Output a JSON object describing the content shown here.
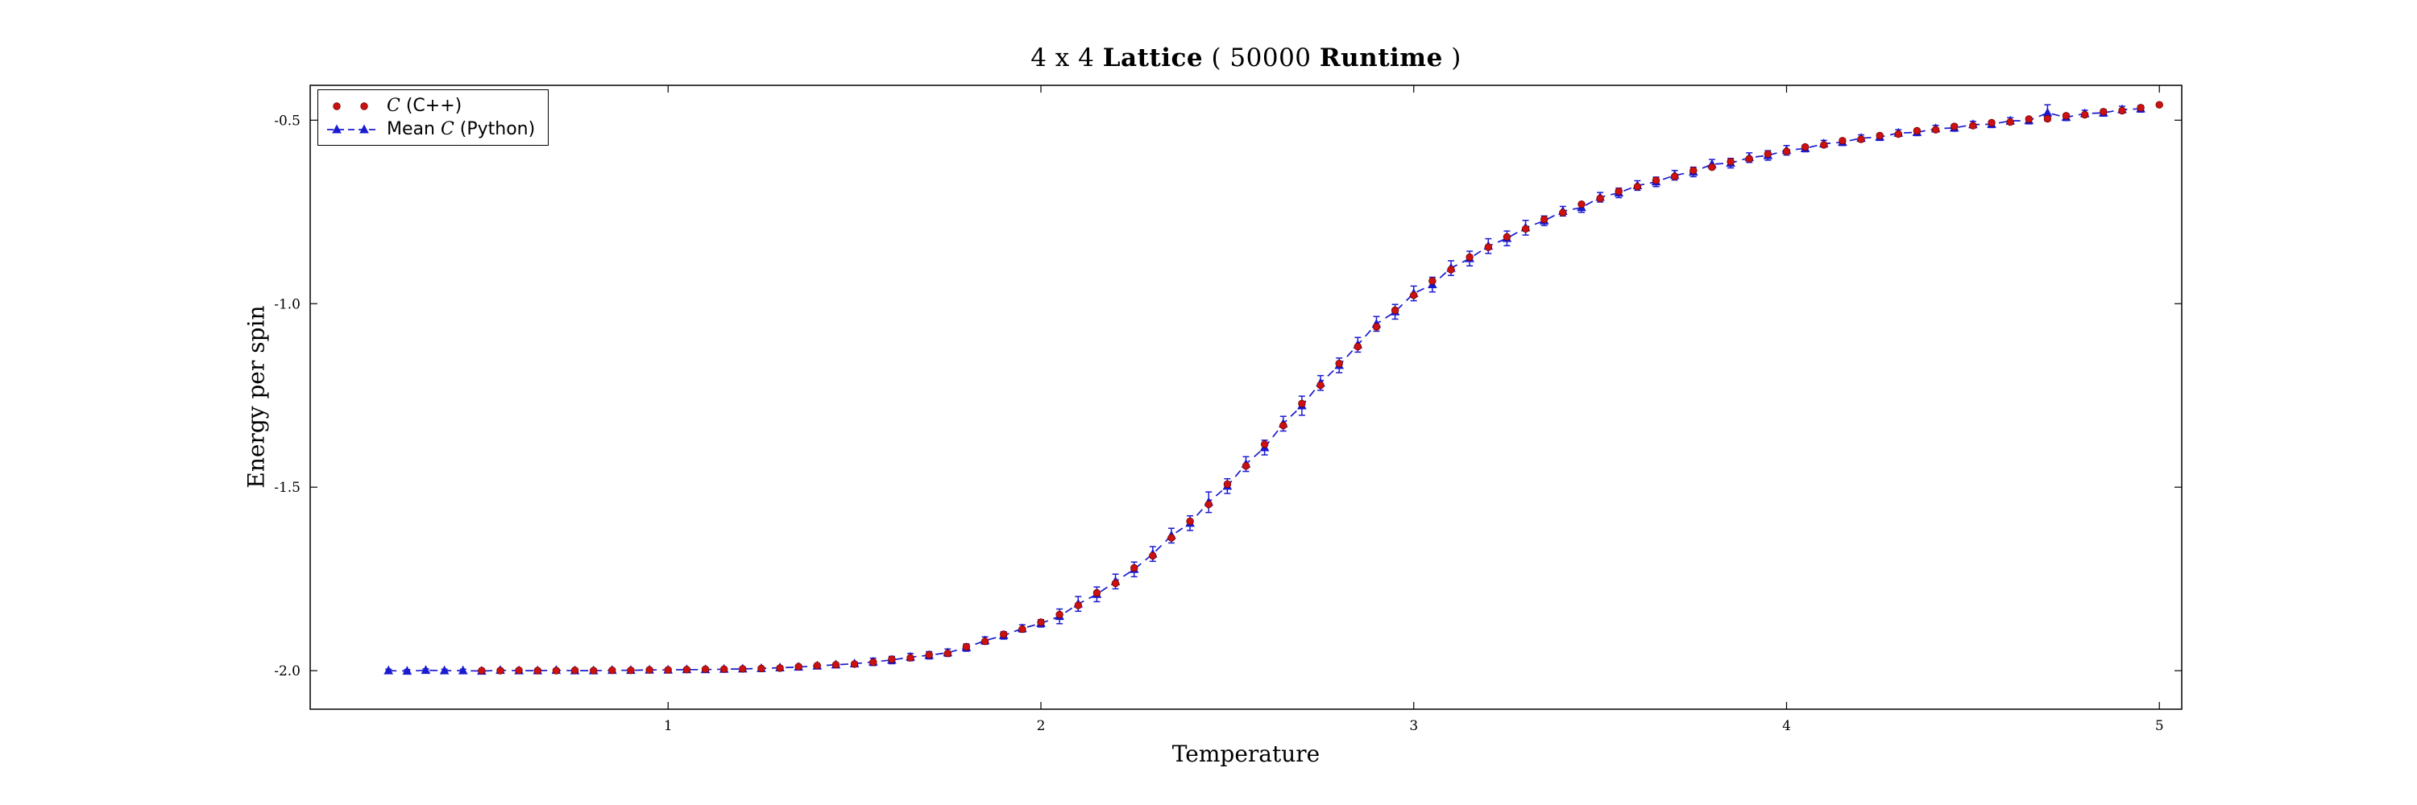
{
  "title_parts": {
    "p1": "4 x 4 ",
    "p2": "Lattice",
    "p3": " ( 50000 ",
    "p4": "Runtime",
    "p5": " )"
  },
  "xlabel": "Temperature",
  "ylabel": "Energy per spin",
  "legend": [
    {
      "prefix": "",
      "math": "C",
      "rest": " (C++)"
    },
    {
      "prefix": "Mean ",
      "math": "C",
      "rest": " (Python)"
    }
  ],
  "chart_data": {
    "type": "scatter",
    "title": "4 x 4 Lattice ( 50000 Runtime )",
    "xlabel": "Temperature",
    "ylabel": "Energy per spin",
    "grid": false,
    "legend_position": "upper left",
    "axis_color": "#000000",
    "xlim": [
      0.04,
      5.06
    ],
    "ylim": [
      -2.105,
      -0.405
    ],
    "xticks": [
      1,
      2,
      3,
      4,
      5
    ],
    "xtick_labels": [
      "1",
      "2",
      "3",
      "4",
      "5"
    ],
    "yticks": [
      -0.5,
      -1.0,
      -1.5,
      -2.0
    ],
    "ytick_labels": [
      "-0.5",
      "-1.0",
      "-1.5",
      "-2.0"
    ],
    "series": [
      {
        "name": "C (C++)",
        "type": "scatter",
        "marker": "circle",
        "color": "#cc1111",
        "x": [
          0.5,
          0.55,
          0.6,
          0.65,
          0.7,
          0.75,
          0.8,
          0.85,
          0.9,
          0.95,
          1.0,
          1.05,
          1.1,
          1.15,
          1.2,
          1.25,
          1.3,
          1.35,
          1.4,
          1.45,
          1.5,
          1.55,
          1.6,
          1.65,
          1.7,
          1.75,
          1.8,
          1.85,
          1.9,
          1.95,
          2.0,
          2.05,
          2.1,
          2.15,
          2.2,
          2.25,
          2.3,
          2.35,
          2.4,
          2.45,
          2.5,
          2.55,
          2.6,
          2.65,
          2.7,
          2.75,
          2.8,
          2.85,
          2.9,
          2.95,
          3.0,
          3.05,
          3.1,
          3.15,
          3.2,
          3.25,
          3.3,
          3.35,
          3.4,
          3.45,
          3.5,
          3.55,
          3.6,
          3.65,
          3.7,
          3.75,
          3.8,
          3.85,
          3.9,
          3.95,
          4.0,
          4.05,
          4.1,
          4.15,
          4.2,
          4.25,
          4.3,
          4.35,
          4.4,
          4.45,
          4.5,
          4.55,
          4.6,
          4.65,
          4.7,
          4.75,
          4.8,
          4.85,
          4.9,
          4.95,
          5.0
        ],
        "y": [
          -2.0,
          -2.0,
          -1.999,
          -2.0,
          -2.0,
          -1.999,
          -2.0,
          -1.999,
          -1.999,
          -1.998,
          -1.998,
          -1.997,
          -1.996,
          -1.996,
          -1.995,
          -1.994,
          -1.993,
          -1.989,
          -1.986,
          -1.984,
          -1.982,
          -1.977,
          -1.969,
          -1.965,
          -1.957,
          -1.953,
          -1.935,
          -1.92,
          -1.901,
          -1.887,
          -1.868,
          -1.847,
          -1.822,
          -1.788,
          -1.762,
          -1.72,
          -1.687,
          -1.638,
          -1.593,
          -1.547,
          -1.492,
          -1.442,
          -1.383,
          -1.332,
          -1.272,
          -1.222,
          -1.163,
          -1.117,
          -1.063,
          -1.018,
          -0.977,
          -0.938,
          -0.907,
          -0.873,
          -0.846,
          -0.818,
          -0.796,
          -0.77,
          -0.752,
          -0.729,
          -0.713,
          -0.694,
          -0.681,
          -0.664,
          -0.653,
          -0.637,
          -0.628,
          -0.613,
          -0.605,
          -0.592,
          -0.585,
          -0.573,
          -0.567,
          -0.556,
          -0.552,
          -0.542,
          -0.538,
          -0.529,
          -0.526,
          -0.517,
          -0.515,
          -0.507,
          -0.505,
          -0.497,
          -0.496,
          -0.488,
          -0.485,
          -0.477,
          -0.474,
          -0.466,
          -0.458
        ]
      },
      {
        "name": "Mean C (Python)",
        "type": "errorbar-line",
        "marker": "triangle",
        "linestyle": "dashed",
        "color": "#1a1ad1",
        "x": [
          0.25,
          0.3,
          0.35,
          0.4,
          0.45,
          0.5,
          0.55,
          0.6,
          0.65,
          0.7,
          0.75,
          0.8,
          0.85,
          0.9,
          0.95,
          1.0,
          1.05,
          1.1,
          1.15,
          1.2,
          1.25,
          1.3,
          1.35,
          1.4,
          1.45,
          1.5,
          1.55,
          1.6,
          1.65,
          1.7,
          1.75,
          1.8,
          1.85,
          1.9,
          1.95,
          2.0,
          2.05,
          2.1,
          2.15,
          2.2,
          2.25,
          2.3,
          2.35,
          2.4,
          2.45,
          2.5,
          2.55,
          2.6,
          2.65,
          2.7,
          2.75,
          2.8,
          2.85,
          2.9,
          2.95,
          3.0,
          3.05,
          3.1,
          3.15,
          3.2,
          3.25,
          3.3,
          3.35,
          3.4,
          3.45,
          3.5,
          3.55,
          3.6,
          3.65,
          3.7,
          3.75,
          3.8,
          3.85,
          3.9,
          3.95,
          4.0,
          4.05,
          4.1,
          4.15,
          4.2,
          4.25,
          4.3,
          4.35,
          4.4,
          4.45,
          4.5,
          4.55,
          4.6,
          4.65,
          4.7,
          4.75,
          4.8,
          4.85,
          4.9,
          4.95
        ],
        "y": [
          -2.0,
          -2.001,
          -1.999,
          -2.0,
          -2.0,
          -2.001,
          -1.999,
          -2.0,
          -2.0,
          -1.999,
          -2.0,
          -2.0,
          -1.999,
          -1.999,
          -1.998,
          -1.998,
          -1.997,
          -1.997,
          -1.996,
          -1.995,
          -1.994,
          -1.992,
          -1.99,
          -1.987,
          -1.984,
          -1.981,
          -1.976,
          -1.971,
          -1.963,
          -1.958,
          -1.951,
          -1.937,
          -1.918,
          -1.904,
          -1.885,
          -1.871,
          -1.852,
          -1.818,
          -1.792,
          -1.757,
          -1.724,
          -1.682,
          -1.632,
          -1.598,
          -1.541,
          -1.497,
          -1.437,
          -1.392,
          -1.327,
          -1.278,
          -1.216,
          -1.168,
          -1.112,
          -1.055,
          -1.022,
          -0.972,
          -0.948,
          -0.903,
          -0.877,
          -0.843,
          -0.822,
          -0.793,
          -0.774,
          -0.748,
          -0.738,
          -0.71,
          -0.698,
          -0.678,
          -0.668,
          -0.65,
          -0.641,
          -0.62,
          -0.617,
          -0.602,
          -0.596,
          -0.582,
          -0.577,
          -0.564,
          -0.56,
          -0.549,
          -0.546,
          -0.535,
          -0.533,
          -0.523,
          -0.521,
          -0.512,
          -0.511,
          -0.502,
          -0.501,
          -0.48,
          -0.492,
          -0.482,
          -0.48,
          -0.471,
          -0.469
        ],
        "yerr": [
          0.004,
          0.004,
          0.004,
          0.004,
          0.004,
          0.004,
          0.004,
          0.004,
          0.004,
          0.004,
          0.004,
          0.004,
          0.004,
          0.004,
          0.004,
          0.004,
          0.004,
          0.004,
          0.004,
          0.004,
          0.004,
          0.004,
          0.004,
          0.004,
          0.004,
          0.004,
          0.01,
          0.01,
          0.01,
          0.01,
          0.01,
          0.01,
          0.01,
          0.01,
          0.01,
          0.01,
          0.02,
          0.02,
          0.02,
          0.02,
          0.02,
          0.02,
          0.02,
          0.02,
          0.028,
          0.02,
          0.02,
          0.02,
          0.02,
          0.026,
          0.02,
          0.02,
          0.02,
          0.02,
          0.02,
          0.02,
          0.02,
          0.02,
          0.02,
          0.02,
          0.02,
          0.02,
          0.013,
          0.013,
          0.013,
          0.013,
          0.013,
          0.013,
          0.013,
          0.013,
          0.013,
          0.013,
          0.013,
          0.013,
          0.013,
          0.013,
          0.009,
          0.009,
          0.009,
          0.009,
          0.009,
          0.009,
          0.009,
          0.009,
          0.009,
          0.009,
          0.009,
          0.009,
          0.009,
          0.022,
          0.009,
          0.009,
          0.009,
          0.009,
          0.009
        ]
      }
    ]
  }
}
